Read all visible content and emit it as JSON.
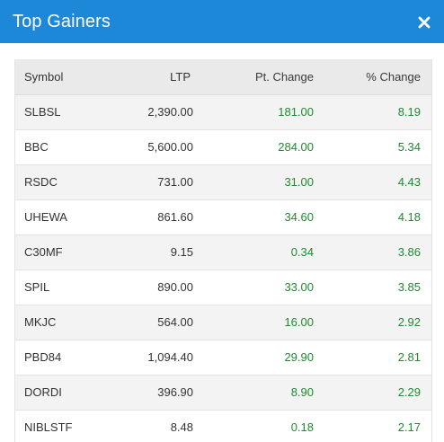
{
  "header": {
    "title": "Top Gainers",
    "close_icon": "close-icon"
  },
  "colors": {
    "header_bg": "#1e88d8",
    "positive": "#1f8a2f"
  },
  "table": {
    "columns": [
      "Symbol",
      "LTP",
      "Pt. Change",
      "% Change"
    ],
    "rows": [
      {
        "symbol": "SLBSL",
        "ltp": "2,390.00",
        "pt_change": "181.00",
        "pct_change": "8.19"
      },
      {
        "symbol": "BBC",
        "ltp": "5,600.00",
        "pt_change": "284.00",
        "pct_change": "5.34"
      },
      {
        "symbol": "RSDC",
        "ltp": "731.00",
        "pt_change": "31.00",
        "pct_change": "4.43"
      },
      {
        "symbol": "UHEWA",
        "ltp": "861.60",
        "pt_change": "34.60",
        "pct_change": "4.18"
      },
      {
        "symbol": "C30MF",
        "ltp": "9.15",
        "pt_change": "0.34",
        "pct_change": "3.86"
      },
      {
        "symbol": "SPIL",
        "ltp": "890.00",
        "pt_change": "33.00",
        "pct_change": "3.85"
      },
      {
        "symbol": "MKJC",
        "ltp": "564.00",
        "pt_change": "16.00",
        "pct_change": "2.92"
      },
      {
        "symbol": "PBD84",
        "ltp": "1,094.40",
        "pt_change": "29.90",
        "pct_change": "2.81"
      },
      {
        "symbol": "DORDI",
        "ltp": "396.90",
        "pt_change": "8.90",
        "pct_change": "2.29"
      },
      {
        "symbol": "NIBLSTF",
        "ltp": "8.48",
        "pt_change": "0.18",
        "pct_change": "2.17"
      }
    ]
  }
}
